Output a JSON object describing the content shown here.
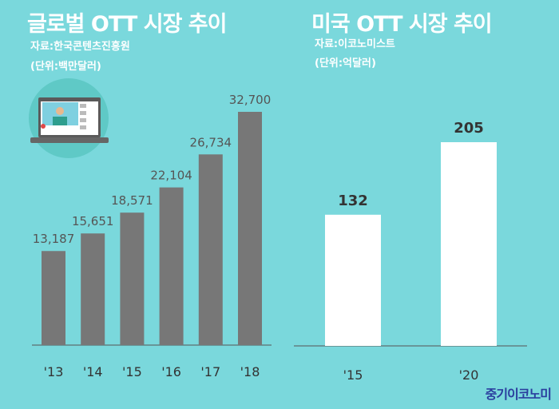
{
  "brand": "중기이코노미",
  "chart_data": [
    {
      "type": "bar",
      "title": "글로벌 OTT 시장 추이",
      "source": "자료:한국콘텐츠진흥원",
      "unit": "(단위:백만달러)",
      "categories": [
        "'13",
        "'14",
        "'15",
        "'16",
        "'17",
        "'18"
      ],
      "values": [
        13187,
        15651,
        18571,
        22104,
        26734,
        32700
      ],
      "labels": [
        "13,187",
        "15,651",
        "18,571",
        "22,104",
        "26,734",
        "32,700"
      ],
      "bar_color": "#777777",
      "ylim": [
        0,
        32700
      ]
    },
    {
      "type": "bar",
      "title": "미국 OTT 시장 추이",
      "source": "자료:이코노미스트",
      "unit": "(단위:억달러)",
      "categories": [
        "'15",
        "'20"
      ],
      "values": [
        132,
        205
      ],
      "labels": [
        "132",
        "205"
      ],
      "bar_color": "#ffffff",
      "ylim": [
        0,
        205
      ]
    }
  ]
}
